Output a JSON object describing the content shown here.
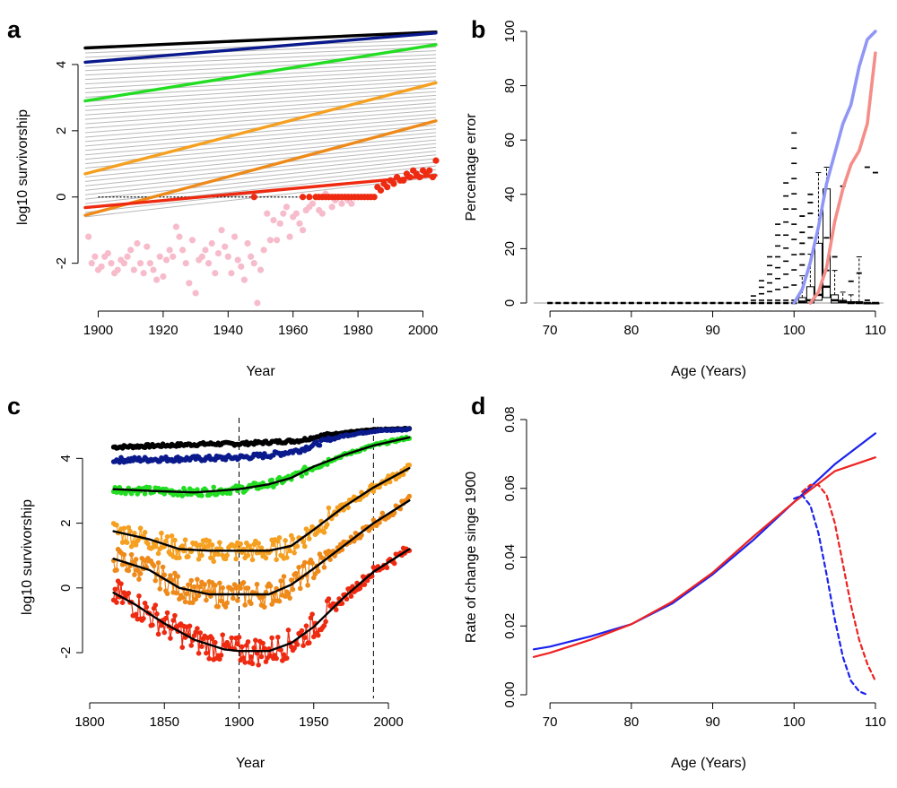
{
  "chart_data": [
    {
      "panel": "a",
      "type": "line",
      "xlabel": "Year",
      "ylabel": "log10 survivorship",
      "xticks": [
        "1900",
        "1920",
        "1940",
        "1960",
        "1980",
        "2000"
      ],
      "yticks": [
        "-2",
        "0",
        "2",
        "4"
      ],
      "xlim": [
        1896,
        2004
      ],
      "ylim": [
        -3.2,
        5.0
      ],
      "grey_lines": {
        "count": 38,
        "start_1896": [
          -0.6,
          4.35
        ],
        "end_2004": [
          0.6,
          4.75
        ]
      },
      "series": [
        {
          "color": "#000000",
          "x": [
            1896,
            2004
          ],
          "y": [
            4.5,
            4.98
          ]
        },
        {
          "color": "#0a1a8c",
          "x": [
            1896,
            2004
          ],
          "y": [
            4.07,
            4.95
          ]
        },
        {
          "color": "#22dd22",
          "x": [
            1896,
            2004
          ],
          "y": [
            2.9,
            4.6
          ]
        },
        {
          "color": "#f5a020",
          "x": [
            1896,
            2004
          ],
          "y": [
            0.7,
            3.45
          ]
        },
        {
          "color": "#ee8a1a",
          "x": [
            1896,
            2004
          ],
          "y": [
            -0.55,
            2.3
          ]
        },
        {
          "color": "#ee2a10",
          "x": [
            1896,
            2004
          ],
          "y": [
            -0.32,
            0.65
          ]
        }
      ],
      "reference_line": {
        "x": [
          1900,
          1985
        ],
        "y": [
          0,
          0
        ]
      },
      "points_pink": {
        "x": [
          1897,
          1898,
          1899,
          1900,
          1901,
          1902,
          1903,
          1904,
          1905,
          1906,
          1907,
          1908,
          1909,
          1910,
          1911,
          1912,
          1913,
          1914,
          1915,
          1916,
          1917,
          1918,
          1919,
          1920,
          1921,
          1922,
          1923,
          1924,
          1925,
          1926,
          1927,
          1928,
          1929,
          1930,
          1931,
          1932,
          1933,
          1934,
          1935,
          1936,
          1937,
          1938,
          1939,
          1940,
          1941,
          1942,
          1943,
          1944,
          1945,
          1946,
          1947,
          1948,
          1949,
          1950,
          1951,
          1952,
          1953,
          1954,
          1955,
          1956,
          1957,
          1958,
          1959,
          1960,
          1961,
          1962,
          1963,
          1964,
          1965,
          1966,
          1967,
          1968,
          1969,
          1970,
          1971,
          1972,
          1973,
          1974,
          1975,
          1976,
          1977,
          1978,
          1979
        ],
        "y": [
          -1.2,
          -2.0,
          -1.8,
          -2.2,
          -2.1,
          -1.8,
          -1.7,
          -2.0,
          -2.3,
          -2.2,
          -1.9,
          -2.0,
          -1.8,
          -1.6,
          -2.2,
          -1.4,
          -2.0,
          -2.3,
          -1.5,
          -2.0,
          -2.2,
          -2.5,
          -1.8,
          -2.4,
          -1.9,
          -1.6,
          -1.8,
          -0.9,
          -1.2,
          -1.6,
          -2.0,
          -2.6,
          -1.3,
          -2.9,
          -1.9,
          -1.8,
          -1.6,
          -2.0,
          -1.4,
          -2.3,
          -1.7,
          -1.0,
          -1.5,
          -1.8,
          -2.3,
          -1.2,
          -1.9,
          -2.1,
          -2.5,
          -1.4,
          -1.8,
          -2.0,
          -3.2,
          -2.2,
          -1.6,
          -0.5,
          -1.3,
          -0.7,
          -1.3,
          -0.8,
          -0.5,
          -0.3,
          -1.2,
          -0.6,
          -0.5,
          -0.8,
          -1.0,
          -0.4,
          -0.3,
          -0.2,
          0.0,
          -0.4,
          -0.5,
          0.1,
          0.0,
          -0.3,
          -0.1,
          0.0,
          -0.2,
          0.0,
          -0.1,
          -0.2,
          0.0
        ]
      },
      "points_red": {
        "x": [
          1948,
          1963,
          1965,
          1967,
          1968,
          1969,
          1970,
          1971,
          1972,
          1973,
          1974,
          1975,
          1976,
          1977,
          1978,
          1979,
          1980,
          1981,
          1982,
          1983,
          1984,
          1985,
          1986,
          1987,
          1988,
          1989,
          1990,
          1991,
          1992,
          1993,
          1994,
          1995,
          1996,
          1997,
          1998,
          1999,
          2000,
          2001,
          2002,
          2003,
          2004
        ],
        "y": [
          0.0,
          0.0,
          0.0,
          0.0,
          0.0,
          0.0,
          0.0,
          0.0,
          0.0,
          0.0,
          0.0,
          0.0,
          0.0,
          0.0,
          0.0,
          0.0,
          0.0,
          0.0,
          0.0,
          0.0,
          0.0,
          0.0,
          0.3,
          0.2,
          0.4,
          0.3,
          0.5,
          0.4,
          0.6,
          0.5,
          0.5,
          0.7,
          0.6,
          0.8,
          0.7,
          0.6,
          0.8,
          0.7,
          0.8,
          0.6,
          1.1
        ]
      }
    },
    {
      "panel": "b",
      "type": "line",
      "xlabel": "Age (Years)",
      "ylabel": "Percentage error",
      "xticks": [
        "70",
        "80",
        "90",
        "100",
        "110"
      ],
      "yticks": [
        "0",
        "20",
        "40",
        "60",
        "80",
        "100"
      ],
      "xlim": [
        68,
        111
      ],
      "ylim": [
        0,
        100
      ],
      "series": [
        {
          "color": "#8f96f5",
          "x": [
            100,
            101,
            102,
            103,
            104,
            105,
            106,
            107,
            108,
            109,
            110
          ],
          "y": [
            0,
            5,
            15,
            28,
            44,
            55,
            66,
            73,
            87,
            97,
            100
          ]
        },
        {
          "color": "#f58d88",
          "x": [
            102,
            103,
            104,
            105,
            106,
            107,
            108,
            109,
            110
          ],
          "y": [
            0,
            4,
            13,
            30,
            42,
            51,
            56,
            66,
            92
          ]
        }
      ],
      "boxes": [
        {
          "age": 101,
          "q1": 0,
          "med": 0.5,
          "q3": 2,
          "whisker": 10,
          "outliers": [
            14,
            18,
            22,
            26,
            32
          ]
        },
        {
          "age": 102,
          "q1": 0,
          "med": 1,
          "q3": 6,
          "whisker": 18,
          "outliers": [
            24,
            28,
            33,
            37,
            40
          ]
        },
        {
          "age": 103,
          "q1": 1,
          "med": 3,
          "q3": 22,
          "whisker": 48,
          "outliers": []
        },
        {
          "age": 104,
          "q1": 2,
          "med": 6,
          "q3": 42,
          "whisker": 50,
          "outliers": [
            24,
            12
          ]
        },
        {
          "age": 105,
          "q1": 0,
          "med": 1,
          "q3": 3,
          "whisker": 12,
          "outliers": [
            17
          ]
        },
        {
          "age": 106,
          "q1": 0,
          "med": 0.5,
          "q3": 1,
          "whisker": 4,
          "outliers": [
            43
          ]
        },
        {
          "age": 107,
          "q1": 0,
          "med": 0,
          "q3": 0.5,
          "whisker": 3,
          "outliers": [
            8
          ]
        },
        {
          "age": 108,
          "q1": 0,
          "med": 0,
          "q3": 0.5,
          "whisker": 17,
          "outliers": [
            11
          ]
        },
        {
          "age": 109,
          "q1": 0,
          "med": 0,
          "q3": 0,
          "whisker": 0,
          "outliers": [
            1,
            50
          ]
        },
        {
          "age": 110,
          "q1": 0,
          "med": 0,
          "q3": 0,
          "whisker": 0,
          "outliers": [
            48
          ]
        }
      ]
    },
    {
      "panel": "c",
      "type": "line",
      "xlabel": "Year",
      "ylabel": "log10 survivorship",
      "xticks": [
        "1800",
        "1850",
        "1900",
        "1950",
        "2000"
      ],
      "yticks": [
        "-2",
        "0",
        "2",
        "4"
      ],
      "xlim": [
        1800,
        2015
      ],
      "ylim": [
        -3.3,
        5.2
      ],
      "vlines": [
        1900,
        1990
      ],
      "series": [
        {
          "color": "#000000",
          "x": [
            1816,
            1850,
            1880,
            1900,
            1920,
            1940,
            1955,
            1970,
            1990,
            2014
          ],
          "y": [
            4.35,
            4.4,
            4.45,
            4.45,
            4.5,
            4.55,
            4.7,
            4.8,
            4.88,
            4.92
          ]
        },
        {
          "color": "#0a1a8c",
          "x": [
            1816,
            1850,
            1880,
            1900,
            1920,
            1940,
            1955,
            1970,
            1990,
            2014
          ],
          "y": [
            3.95,
            3.98,
            4.0,
            4.03,
            4.1,
            4.25,
            4.5,
            4.7,
            4.85,
            4.9
          ]
        },
        {
          "color": "#22dd22",
          "x": [
            1816,
            1840,
            1870,
            1900,
            1920,
            1935,
            1950,
            1970,
            1990,
            2014
          ],
          "y": [
            3.05,
            3.0,
            2.95,
            3.05,
            3.2,
            3.4,
            3.75,
            4.1,
            4.4,
            4.65
          ]
        },
        {
          "color": "#f5a020",
          "x": [
            1816,
            1840,
            1860,
            1880,
            1900,
            1920,
            1935,
            1950,
            1970,
            1990,
            2014
          ],
          "y": [
            1.75,
            1.5,
            1.2,
            1.15,
            1.15,
            1.15,
            1.3,
            1.8,
            2.5,
            3.1,
            3.7
          ]
        },
        {
          "color": "#ee8a1a",
          "x": [
            1816,
            1840,
            1860,
            1880,
            1900,
            1920,
            1935,
            1950,
            1970,
            1990,
            2014
          ],
          "y": [
            0.9,
            0.55,
            0.0,
            -0.2,
            -0.2,
            -0.2,
            0.1,
            0.6,
            1.3,
            2.0,
            2.7
          ]
        },
        {
          "color": "#ee2a10",
          "x": [
            1816,
            1830,
            1850,
            1870,
            1890,
            1900,
            1920,
            1935,
            1950,
            1970,
            1990,
            2014
          ],
          "y": [
            -0.15,
            -0.5,
            -1.1,
            -1.6,
            -1.9,
            -1.95,
            -1.95,
            -1.7,
            -1.2,
            -0.3,
            0.5,
            1.2
          ]
        }
      ]
    },
    {
      "panel": "d",
      "type": "line",
      "xlabel": "Age (Years)",
      "ylabel": "Rate of change singe 1900",
      "xticks": [
        "70",
        "80",
        "90",
        "100",
        "110"
      ],
      "yticks": [
        "0.00",
        "0.02",
        "0.04",
        "0.06",
        "0.08"
      ],
      "xlim": [
        68,
        111
      ],
      "ylim": [
        0,
        0.08
      ],
      "series": [
        {
          "color": "#1a22ee",
          "style": "solid",
          "x": [
            68,
            70,
            75,
            80,
            85,
            90,
            95,
            100,
            105,
            110
          ],
          "y": [
            0.0132,
            0.014,
            0.017,
            0.0205,
            0.0265,
            0.035,
            0.045,
            0.056,
            0.067,
            0.076
          ]
        },
        {
          "color": "#ee2222",
          "style": "solid",
          "x": [
            68,
            70,
            75,
            80,
            85,
            90,
            95,
            100,
            105,
            110
          ],
          "y": [
            0.011,
            0.0122,
            0.016,
            0.0205,
            0.027,
            0.0355,
            0.046,
            0.056,
            0.065,
            0.069
          ]
        },
        {
          "color": "#1a22ee",
          "style": "dashed",
          "x": [
            100,
            101,
            102,
            103,
            104,
            105,
            106,
            107,
            108,
            109
          ],
          "y": [
            0.057,
            0.058,
            0.055,
            0.047,
            0.035,
            0.022,
            0.011,
            0.004,
            0.001,
            0.0
          ]
        },
        {
          "color": "#ee2222",
          "style": "dashed",
          "x": [
            101,
            102,
            103,
            104,
            105,
            106,
            107,
            108,
            109,
            110
          ],
          "y": [
            0.059,
            0.061,
            0.061,
            0.058,
            0.05,
            0.038,
            0.026,
            0.016,
            0.009,
            0.004
          ]
        }
      ]
    }
  ],
  "panel_labels": [
    "a",
    "b",
    "c",
    "d"
  ]
}
